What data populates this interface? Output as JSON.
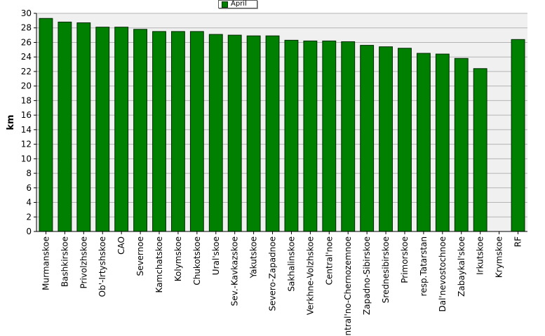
{
  "chart_data": {
    "type": "bar",
    "title": "",
    "xlabel": "",
    "ylabel": "km",
    "ylim": [
      0,
      30
    ],
    "yticks": [
      0,
      2,
      4,
      6,
      8,
      10,
      12,
      14,
      16,
      18,
      20,
      22,
      24,
      26,
      28,
      30
    ],
    "grid": true,
    "legend_position": "top-center",
    "categories": [
      "Murmanskoe",
      "Bashkirskoe",
      "Privolzhskoe",
      "Ob'-Irtyshskoe",
      "CAO",
      "Severnoe",
      "Kamchatskoe",
      "Kolymskoe",
      "Chukotskoe",
      "Ural'skoe",
      "Sev.-Kavkazskoe",
      "Yakutskoe",
      "Severo-Zapadnoe",
      "Sakhalinskoe",
      "Verkhne-Volzhskoe",
      "Central'noe",
      "Central'no-Chernozemnoe",
      "Zapadno-Sibirskoe",
      "Srednesibirskoe",
      "Primorskoe",
      "resp.Tatarstan",
      "Dal'nevostochnoe",
      "Zabaykal'skoe",
      "Irkutskoe",
      "Krymskoe",
      "RF"
    ],
    "series": [
      {
        "name": "April",
        "color": "#008000",
        "values": [
          29.3,
          28.8,
          28.7,
          28.1,
          28.1,
          27.8,
          27.5,
          27.5,
          27.5,
          27.1,
          27.0,
          26.9,
          26.9,
          26.3,
          26.2,
          26.2,
          26.1,
          25.6,
          25.4,
          25.2,
          24.5,
          24.4,
          23.8,
          22.4,
          null,
          26.4
        ]
      }
    ]
  },
  "colors": {
    "plot_bg": "#f0f0f0",
    "grid": "#b4b4b4",
    "bar_stroke": "#002800"
  }
}
